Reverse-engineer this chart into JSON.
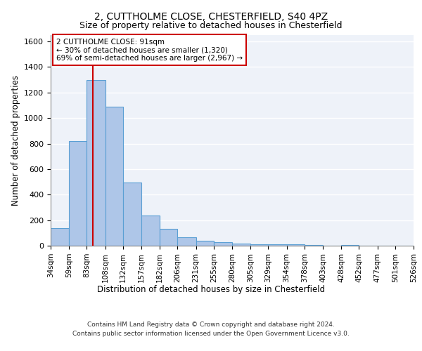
{
  "title_line1": "2, CUTTHOLME CLOSE, CHESTERFIELD, S40 4PZ",
  "title_line2": "Size of property relative to detached houses in Chesterfield",
  "xlabel": "Distribution of detached houses by size in Chesterfield",
  "ylabel": "Number of detached properties",
  "footer_line1": "Contains HM Land Registry data © Crown copyright and database right 2024.",
  "footer_line2": "Contains public sector information licensed under the Open Government Licence v3.0.",
  "bar_values": [
    140,
    820,
    1300,
    1090,
    495,
    235,
    130,
    65,
    40,
    25,
    15,
    10,
    10,
    10,
    5,
    0,
    5,
    0,
    0,
    0
  ],
  "bin_edges": [
    34,
    59,
    83,
    108,
    132,
    157,
    182,
    206,
    231,
    255,
    280,
    305,
    329,
    354,
    378,
    403,
    428,
    452,
    477,
    501,
    526
  ],
  "bar_color": "#aec6e8",
  "bar_edgecolor": "#5a9fd4",
  "vline_x": 91,
  "vline_color": "#cc0000",
  "annotation_text": "2 CUTTHOLME CLOSE: 91sqm\n← 30% of detached houses are smaller (1,320)\n69% of semi-detached houses are larger (2,967) →",
  "annotation_box_color": "#cc0000",
  "ylim": [
    0,
    1650
  ],
  "background_color": "#eef2f9",
  "grid_color": "#ffffff",
  "title_fontsize": 10,
  "subtitle_fontsize": 9,
  "tick_label_fontsize": 7.5,
  "yticks": [
    0,
    200,
    400,
    600,
    800,
    1000,
    1200,
    1400,
    1600
  ]
}
